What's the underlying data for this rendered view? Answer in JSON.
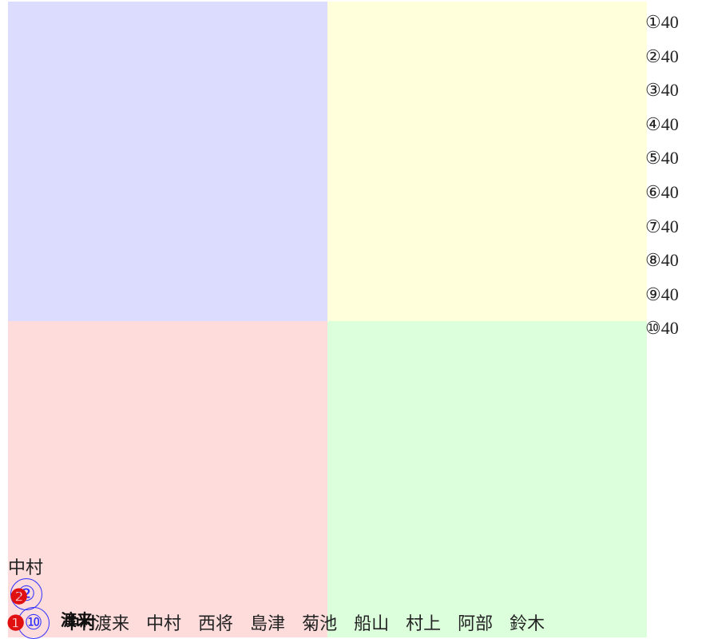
{
  "legend_items": [
    "①40",
    "②40",
    "③40",
    "④40",
    "⑤40",
    "⑥40",
    "⑦40",
    "⑧40",
    "⑨40",
    "⑩40"
  ],
  "top_label": "中村",
  "overlay": {
    "circled": [
      "②",
      "⑩"
    ],
    "filled": [
      "❷",
      "❶"
    ],
    "stacked": [
      "渡来",
      "中村"
    ]
  },
  "names": [
    "渡来",
    "中村",
    "西将",
    "島津",
    "菊池",
    "船山",
    "村上",
    "阿部",
    "鈴木"
  ]
}
